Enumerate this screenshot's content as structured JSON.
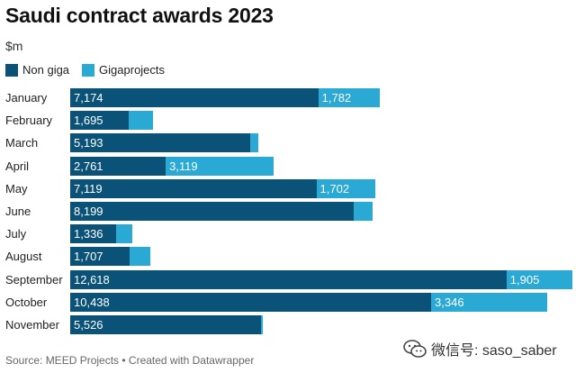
{
  "title": "Saudi contract awards 2023",
  "subtitle": "$m",
  "legend": [
    {
      "label": "Non giga",
      "color": "#0b5278"
    },
    {
      "label": "Gigaprojects",
      "color": "#29a9d4"
    }
  ],
  "footer": "Source: MEED Projects • Created with Datawrapper",
  "watermark": "微信号: saso_saber",
  "chart_data": {
    "type": "bar",
    "orientation": "horizontal",
    "stacked": true,
    "title": "Saudi contract awards 2023",
    "ylabel": "$m",
    "xlim": [
      0,
      14523
    ],
    "categories": [
      "January",
      "February",
      "March",
      "April",
      "May",
      "June",
      "July",
      "August",
      "September",
      "October",
      "November"
    ],
    "series": [
      {
        "name": "Non giga",
        "color": "#0b5278",
        "values": [
          7174,
          1695,
          5193,
          2761,
          7119,
          8199,
          1336,
          1707,
          12618,
          10438,
          5526
        ],
        "labels": [
          "7,174",
          "1,695",
          "5,193",
          "2,761",
          "7,119",
          "8,199",
          "1,336",
          "1,707",
          "12,618",
          "10,438",
          "5,526"
        ]
      },
      {
        "name": "Gigaprojects",
        "color": "#29a9d4",
        "values": [
          1782,
          700,
          250,
          3119,
          1702,
          550,
          450,
          600,
          1905,
          3346,
          50
        ],
        "labels": [
          "1,782",
          "",
          "",
          "3,119",
          "1,702",
          "",
          "",
          "",
          "1,905",
          "3,346",
          ""
        ]
      }
    ]
  }
}
